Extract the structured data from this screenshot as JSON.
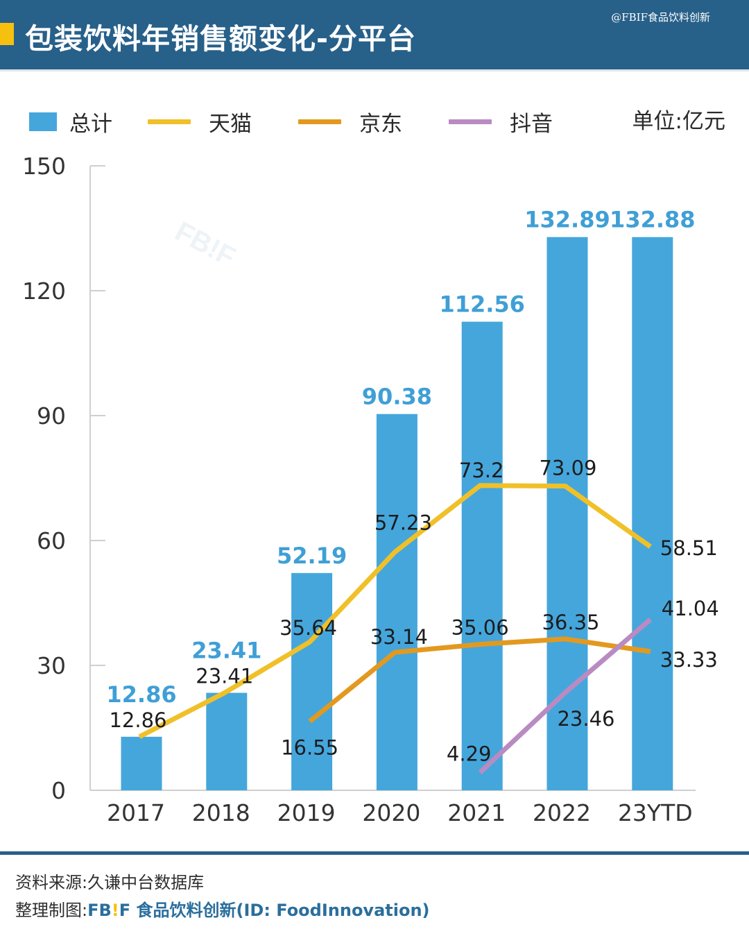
{
  "header": {
    "title": "包装饮料年销售额变化-分平台",
    "credit": "@FBIF食品饮料创新"
  },
  "legend": {
    "items": [
      {
        "label": "总计",
        "type": "bar",
        "color": "#45a6dc"
      },
      {
        "label": "天猫",
        "type": "line",
        "color": "#f0c029"
      },
      {
        "label": "京东",
        "type": "line",
        "color": "#e3991f"
      },
      {
        "label": "抖音",
        "type": "line",
        "color": "#b98bc2"
      }
    ],
    "unit": "单位:亿元"
  },
  "watermark": {
    "text": "FB!F"
  },
  "chart_data": {
    "type": "bar+line",
    "title": "包装饮料年销售额变化-分平台",
    "unit": "亿元",
    "categories": [
      "2017",
      "2018",
      "2019",
      "2020",
      "2021",
      "2022",
      "23YTD"
    ],
    "ylim": [
      0,
      150
    ],
    "yticks": [
      0,
      30,
      60,
      90,
      120,
      150
    ],
    "grid": false,
    "legend_position": "top",
    "series": [
      {
        "name": "总计",
        "type": "bar",
        "color": "#45a6dc",
        "label_color": "#3f9fd6",
        "values": [
          12.86,
          23.41,
          52.19,
          90.38,
          112.56,
          132.89,
          132.88
        ],
        "labels": [
          "12.86",
          "23.41",
          "52.19",
          "90.38",
          "112.56",
          "132.89",
          "132.88"
        ]
      },
      {
        "name": "天猫",
        "type": "line",
        "color": "#f0c029",
        "values": [
          12.86,
          23.41,
          35.64,
          57.23,
          73.2,
          73.09,
          58.51
        ],
        "labels": [
          "12.86",
          "23.41",
          "35.64",
          "57.23",
          "73.2",
          "73.09",
          "58.51"
        ]
      },
      {
        "name": "京东",
        "type": "line",
        "color": "#e3991f",
        "values": [
          null,
          null,
          16.55,
          33.14,
          35.06,
          36.35,
          33.33
        ],
        "labels": [
          null,
          null,
          "16.55",
          "33.14",
          "35.06",
          "36.35",
          "33.33"
        ]
      },
      {
        "name": "抖音",
        "type": "line",
        "color": "#b98bc2",
        "values": [
          null,
          null,
          null,
          null,
          4.29,
          23.46,
          41.04
        ],
        "labels": [
          null,
          null,
          null,
          null,
          "4.29",
          "23.46",
          "41.04"
        ]
      }
    ]
  },
  "footer": {
    "source": "资料来源:久谦中台数据库",
    "maker_prefix": "整理制图:",
    "brand_fb": "FB",
    "brand_bang": "!",
    "brand_f": "F",
    "brand_name": " 食品饮料创新(ID: FoodInnovation)"
  }
}
